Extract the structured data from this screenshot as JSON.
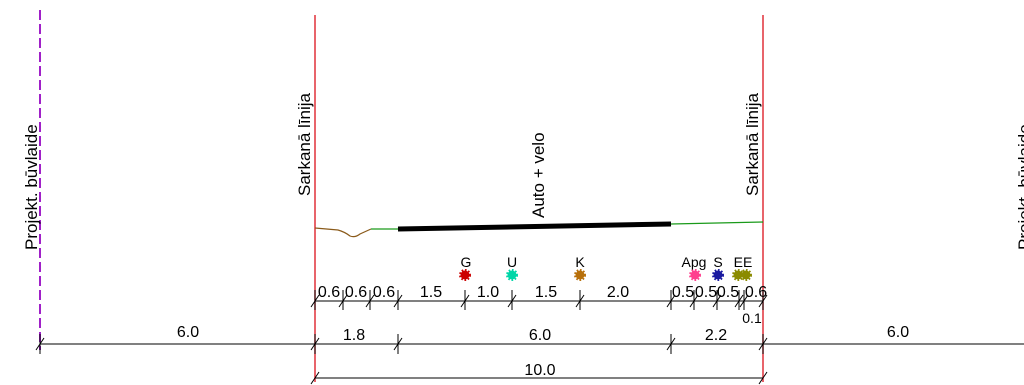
{
  "labels": {
    "building_line_left": "Projekt. būvlaide",
    "building_line_right": "Projekt. būvlaide",
    "red_line_left": "Sarkanā līnija",
    "red_line_right": "Sarkanā līnija",
    "road": "Auto + velo"
  },
  "utilities": [
    {
      "code": "G",
      "color": "#cc0000"
    },
    {
      "code": "U",
      "color": "#00d6a8"
    },
    {
      "code": "K",
      "color": "#b8700a"
    },
    {
      "code": "Apg",
      "color": "#ff3f8e"
    },
    {
      "code": "S",
      "color": "#1a1aa0"
    },
    {
      "code": "EE",
      "color": "#8b8b00"
    }
  ],
  "dimensions": {
    "row1": [
      "0.6",
      "0.6",
      "0.6",
      "1.5",
      "1.0",
      "1.5",
      "2.0",
      "0.5",
      "0.5",
      "0.5",
      "0.6"
    ],
    "extra": "0.1",
    "row2": [
      "6.0",
      "1.8",
      "6.0",
      "2.2",
      "6.0"
    ],
    "total": "10.0"
  },
  "colors": {
    "red_line": "#e0303a",
    "building_line": "#a020c8",
    "ground_left": "#8a5a1a",
    "ground_green": "#1a9a1a",
    "road": "#000000"
  }
}
